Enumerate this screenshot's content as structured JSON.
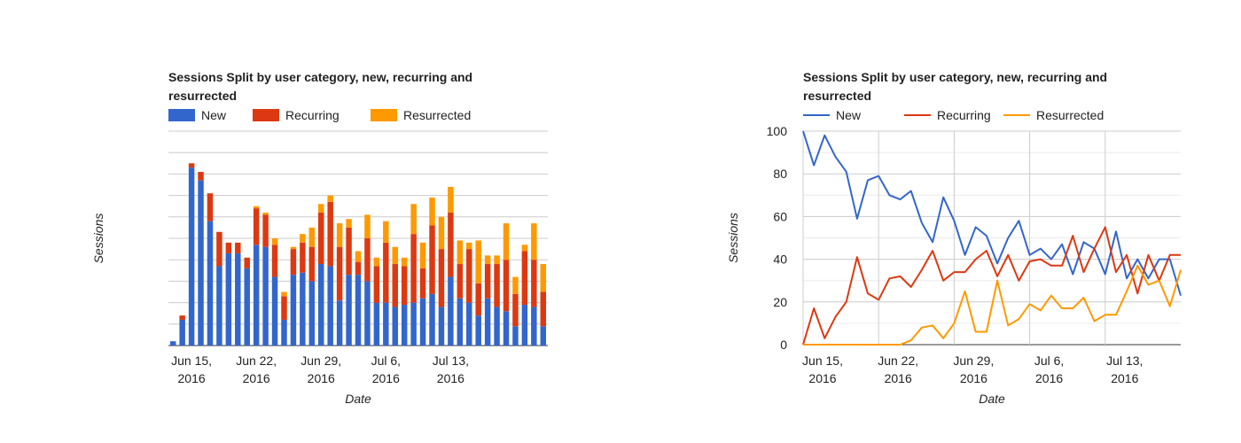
{
  "chart_data": [
    {
      "type": "bar",
      "stacked": true,
      "title_lines": [
        "Sessions Split by user category, new, recurring and",
        "resurrected"
      ],
      "xlabel": "Date",
      "ylabel": "Sessions",
      "x_tick_labels": [
        {
          "line1": "Jun 15,",
          "line2": "2016"
        },
        {
          "line1": "Jun 22,",
          "line2": "2016"
        },
        {
          "line1": "Jun 29,",
          "line2": "2016"
        },
        {
          "line1": "Jul 6,",
          "line2": "2016"
        },
        {
          "line1": "Jul 13,",
          "line2": "2016"
        }
      ],
      "y_tick_labels_shown": false,
      "ylim": [
        0,
        100
      ],
      "grid": true,
      "legend_position": "top",
      "series": [
        {
          "name": "New",
          "color": "#3366cc",
          "values": [
            2,
            12,
            83,
            77,
            58,
            37,
            43,
            43,
            36,
            47,
            46,
            32,
            12,
            33,
            34,
            30,
            38,
            37,
            21,
            33,
            33,
            30,
            20,
            20,
            18,
            19,
            20,
            22,
            24,
            18,
            32,
            22,
            20,
            14,
            22,
            18,
            16,
            9,
            19,
            18,
            9
          ]
        },
        {
          "name": "Recurring",
          "color": "#dc3912",
          "values": [
            0,
            2,
            2,
            4,
            13,
            16,
            5,
            5,
            5,
            17,
            15,
            15,
            11,
            12,
            14,
            16,
            24,
            30,
            25,
            22,
            6,
            20,
            17,
            28,
            20,
            18,
            32,
            14,
            32,
            27,
            30,
            16,
            25,
            15,
            16,
            20,
            24,
            15,
            25,
            22,
            16
          ]
        },
        {
          "name": "Resurrected",
          "color": "#ff9900",
          "values": [
            0,
            0,
            0,
            0,
            0,
            0,
            0,
            0,
            0,
            1,
            1,
            3,
            2,
            1,
            4,
            9,
            4,
            3,
            11,
            4,
            5,
            11,
            4,
            10,
            8,
            4,
            14,
            12,
            13,
            15,
            12,
            11,
            3,
            20,
            4,
            4,
            17,
            8,
            3,
            17,
            13
          ]
        }
      ]
    },
    {
      "type": "line",
      "title_lines": [
        "Sessions Split by user category, new, recurring and",
        "resurrected"
      ],
      "xlabel": "Date",
      "ylabel": "Sessions",
      "x_tick_labels": [
        {
          "line1": "Jun 15,",
          "line2": "2016"
        },
        {
          "line1": "Jun 22,",
          "line2": "2016"
        },
        {
          "line1": "Jun 29,",
          "line2": "2016"
        },
        {
          "line1": "Jul 6,",
          "line2": "2016"
        },
        {
          "line1": "Jul 13,",
          "line2": "2016"
        }
      ],
      "y_ticks": [
        "0",
        "20",
        "40",
        "60",
        "80",
        "100"
      ],
      "ylim": [
        0,
        100
      ],
      "grid": true,
      "legend_position": "top",
      "series": [
        {
          "name": "New",
          "color": "#3366cc",
          "values": [
            100,
            84,
            98,
            88,
            81,
            59,
            77,
            79,
            70,
            68,
            72,
            57,
            48,
            69,
            58,
            42,
            55,
            51,
            38,
            50,
            58,
            42,
            45,
            40,
            47,
            33,
            48,
            45,
            33,
            53,
            31,
            40,
            31,
            40,
            40,
            23
          ]
        },
        {
          "name": "Recurring",
          "color": "#dc3912",
          "values": [
            0,
            17,
            3,
            13,
            20,
            41,
            24,
            21,
            31,
            32,
            27,
            35,
            44,
            30,
            34,
            34,
            40,
            44,
            32,
            42,
            30,
            39,
            40,
            37,
            37,
            51,
            34,
            45,
            55,
            34,
            42,
            24,
            42,
            30,
            42,
            42
          ]
        },
        {
          "name": "Resurrected",
          "color": "#ff9900",
          "values": [
            0,
            0,
            0,
            0,
            0,
            0,
            0,
            0,
            0,
            0,
            2,
            8,
            9,
            3,
            10,
            25,
            6,
            6,
            30,
            9,
            12,
            19,
            16,
            23,
            17,
            17,
            22,
            11,
            14,
            14,
            25,
            37,
            28,
            30,
            18,
            35
          ]
        }
      ]
    }
  ]
}
